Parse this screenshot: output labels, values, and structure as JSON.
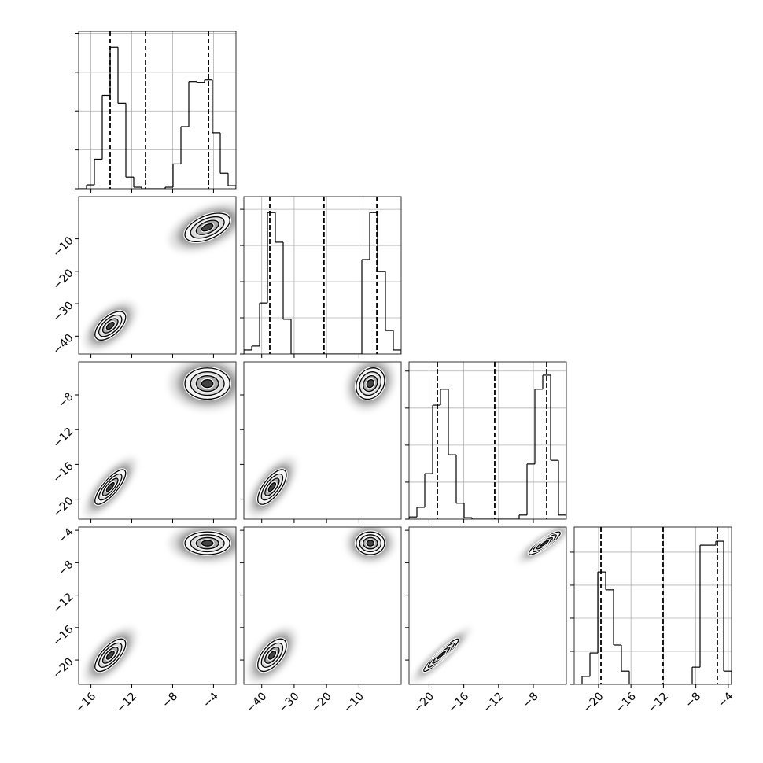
{
  "chart_data": {
    "type": "corner",
    "grid": true,
    "variables": [
      {
        "range": [
          -17.2,
          -1.8
        ],
        "ticks": [
          {
            "value": -16,
            "label": "−16"
          },
          {
            "value": -12,
            "label": "−12"
          },
          {
            "value": -8,
            "label": "−8"
          },
          {
            "value": -4,
            "label": "−4"
          }
        ],
        "bins": [
          -17.2,
          -16.43,
          -15.66,
          -14.89,
          -14.12,
          -13.35,
          -12.58,
          -11.81,
          -11.04,
          -10.27,
          -9.5,
          -8.73,
          -7.96,
          -7.19,
          -6.42,
          -5.65,
          -4.88,
          -4.11,
          -3.34,
          -2.57,
          -1.8
        ],
        "counts": [
          0,
          100,
          760,
          2400,
          3640,
          2200,
          300,
          40,
          0,
          0,
          0,
          40,
          640,
          1600,
          2760,
          2740,
          2800,
          1440,
          400,
          80
        ],
        "ylim": [
          0,
          4050
        ],
        "yticks": [
          0,
          1000,
          2000,
          3000,
          4000
        ],
        "quantiles": [
          -14.12,
          -10.65,
          -4.49
        ],
        "clusters": [
          {
            "mean": -14.1,
            "sd": 0.75
          },
          {
            "mean": -4.6,
            "sd": 1.1
          }
        ]
      },
      {
        "range": [
          -45.5,
          3
        ],
        "ticks": [
          {
            "value": -40,
            "label": "−40"
          },
          {
            "value": -30,
            "label": "−30"
          },
          {
            "value": -20,
            "label": "−20"
          },
          {
            "value": -10,
            "label": "−10"
          }
        ],
        "bins": [
          -45.5,
          -43.075,
          -40.65,
          -38.225,
          -35.8,
          -33.375,
          -30.95,
          -28.525,
          -26.1,
          -23.675,
          -21.25,
          -18.825,
          -16.4,
          -13.975,
          -11.55,
          -9.125,
          -6.7,
          -4.275,
          -1.85,
          0.575,
          3
        ],
        "counts": [
          110,
          220,
          1410,
          3910,
          3090,
          960,
          0,
          0,
          0,
          0,
          0,
          0,
          0,
          0,
          0,
          2610,
          3910,
          2280,
          650,
          110
        ],
        "ylim": [
          0,
          4350
        ],
        "yticks": [
          0,
          1000,
          2000,
          3000,
          4000
        ],
        "quantiles": [
          -37.5,
          -20.8,
          -4.5
        ],
        "clusters": [
          {
            "mean": -36.8,
            "sd": 2.2
          },
          {
            "mean": -6.5,
            "sd": 2.2
          }
        ]
      },
      {
        "range": [
          -22.3,
          -4.2
        ],
        "ticks": [
          {
            "value": -20,
            "label": "−20"
          },
          {
            "value": -16,
            "label": "−16"
          },
          {
            "value": -12,
            "label": "−12"
          },
          {
            "value": -8,
            "label": "−8"
          }
        ],
        "bins": [
          -22.3,
          -21.395,
          -20.49,
          -19.585,
          -18.68,
          -17.775,
          -16.87,
          -15.965,
          -15.06,
          -14.155,
          -13.25,
          -12.345,
          -11.44,
          -10.535,
          -9.63,
          -8.725,
          -7.82,
          -6.915,
          -6.01,
          -5.105,
          -4.2
        ],
        "counts": [
          60,
          320,
          1230,
          3080,
          3510,
          1740,
          430,
          40,
          0,
          0,
          0,
          0,
          0,
          0,
          110,
          1490,
          3510,
          3890,
          1590,
          110
        ],
        "ylim": [
          0,
          4250
        ],
        "yticks": [
          0,
          1000,
          2000,
          3000,
          4000
        ],
        "quantiles": [
          -19.04,
          -12.44,
          -6.46
        ],
        "clusters": [
          {
            "mean": -18.6,
            "sd": 1.0
          },
          {
            "mean": -6.7,
            "sd": 0.9
          }
        ]
      },
      {
        "range": [
          -23,
          -3.6
        ],
        "ticks": [
          {
            "value": -20,
            "label": "−20"
          },
          {
            "value": -16,
            "label": "−16"
          },
          {
            "value": -12,
            "label": "−12"
          },
          {
            "value": -8,
            "label": "−8"
          },
          {
            "value": -4,
            "label": "−4"
          }
        ],
        "bins": [
          -23,
          -22.03,
          -21.06,
          -20.09,
          -19.12,
          -18.15,
          -17.18,
          -16.21,
          -15.24,
          -14.27,
          -13.3,
          -12.33,
          -11.36,
          -10.39,
          -9.42,
          -8.45,
          -7.48,
          -6.51,
          -5.54,
          -4.57,
          -3.6
        ],
        "counts": [
          0,
          240,
          950,
          3400,
          2860,
          1190,
          400,
          0,
          0,
          0,
          0,
          0,
          0,
          0,
          0,
          520,
          4210,
          4210,
          4330,
          400
        ],
        "ylim": [
          0,
          4760
        ],
        "yticks": [
          0,
          1000,
          2000,
          3000,
          4000
        ],
        "quantiles": [
          -19.7,
          -12.04,
          -5.35
        ],
        "clusters": [
          {
            "mean": -19.4,
            "sd": 1.0
          },
          {
            "mean": -5.6,
            "sd": 0.7
          }
        ]
      }
    ],
    "correlations": [
      [
        [
          0.6,
          0.5
        ]
      ],
      [
        [
          0.8,
          0
        ],
        [
          0.7,
          0.2
        ]
      ],
      [
        [
          0.7,
          0
        ],
        [
          0.6,
          0
        ],
        [
          0.95,
          0.9
        ]
      ]
    ]
  }
}
